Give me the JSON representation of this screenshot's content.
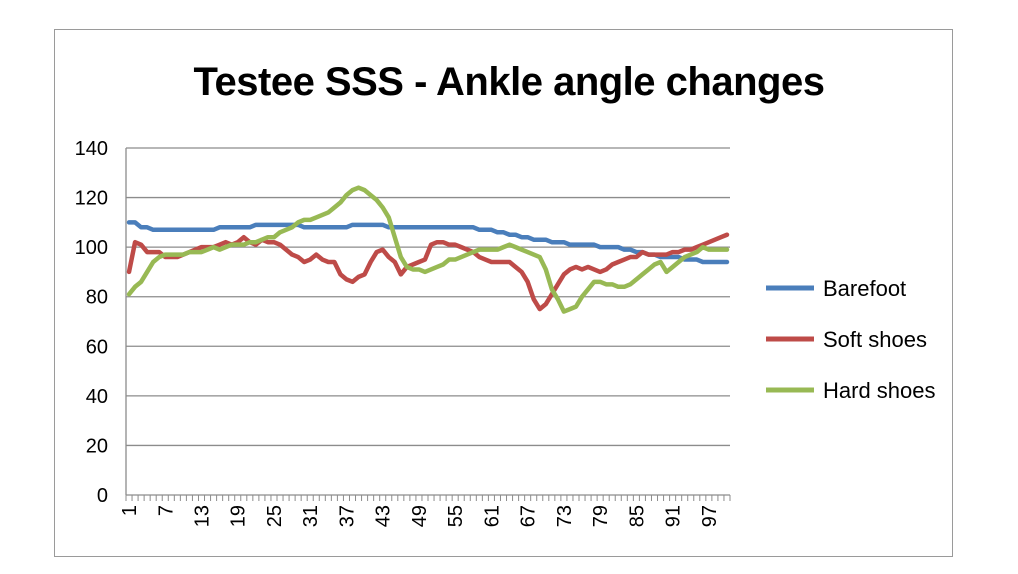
{
  "chart_data": {
    "type": "line",
    "title": "Testee  SSS - Ankle angle changes",
    "xlabel": "",
    "ylabel": "",
    "ylim": [
      0,
      140
    ],
    "yticks": [
      0,
      20,
      40,
      60,
      80,
      100,
      120,
      140
    ],
    "x_count": 100,
    "x_tick_labels": [
      "1",
      "7",
      "13",
      "19",
      "25",
      "31",
      "37",
      "43",
      "49",
      "55",
      "61",
      "67",
      "73",
      "79",
      "85",
      "91",
      "97"
    ],
    "grid": "horizontal",
    "legend_position": "right",
    "series": [
      {
        "name": "Barefoot",
        "color": "#4a7ebb",
        "values": [
          110,
          110,
          108,
          108,
          107,
          107,
          107,
          107,
          107,
          107,
          107,
          107,
          107,
          107,
          107,
          108,
          108,
          108,
          108,
          108,
          108,
          109,
          109,
          109,
          109,
          109,
          109,
          109,
          109,
          108,
          108,
          108,
          108,
          108,
          108,
          108,
          108,
          109,
          109,
          109,
          109,
          109,
          109,
          108,
          108,
          108,
          108,
          108,
          108,
          108,
          108,
          108,
          108,
          108,
          108,
          108,
          108,
          108,
          107,
          107,
          107,
          106,
          106,
          105,
          105,
          104,
          104,
          103,
          103,
          103,
          102,
          102,
          102,
          101,
          101,
          101,
          101,
          101,
          100,
          100,
          100,
          100,
          99,
          99,
          98,
          98,
          97,
          97,
          96,
          96,
          96,
          96,
          95,
          95,
          95,
          94,
          94,
          94,
          94,
          94
        ]
      },
      {
        "name": "Soft shoes",
        "color": "#be4b48",
        "values": [
          90,
          102,
          101,
          98,
          98,
          98,
          96,
          96,
          96,
          97,
          98,
          99,
          100,
          100,
          100,
          101,
          102,
          101,
          102,
          104,
          102,
          101,
          103,
          102,
          102,
          101,
          99,
          97,
          96,
          94,
          95,
          97,
          95,
          94,
          94,
          89,
          87,
          86,
          88,
          89,
          94,
          98,
          99,
          96,
          94,
          89,
          92,
          93,
          94,
          95,
          101,
          102,
          102,
          101,
          101,
          100,
          99,
          98,
          96,
          95,
          94,
          94,
          94,
          94,
          92,
          90,
          86,
          79,
          75,
          77,
          81,
          85,
          89,
          91,
          92,
          91,
          92,
          91,
          90,
          91,
          93,
          94,
          95,
          96,
          96,
          98,
          97,
          97,
          97,
          97,
          98,
          98,
          99,
          99,
          100,
          101,
          102,
          103,
          104,
          105
        ]
      },
      {
        "name": "Hard shoes",
        "color": "#98b954",
        "values": [
          81,
          84,
          86,
          90,
          94,
          96,
          97,
          97,
          97,
          97,
          98,
          98,
          98,
          99,
          100,
          99,
          100,
          101,
          101,
          101,
          102,
          102,
          103,
          104,
          104,
          106,
          107,
          108,
          110,
          111,
          111,
          112,
          113,
          114,
          116,
          118,
          121,
          123,
          124,
          123,
          121,
          119,
          116,
          112,
          104,
          96,
          92,
          91,
          91,
          90,
          91,
          92,
          93,
          95,
          95,
          96,
          97,
          98,
          99,
          99,
          99,
          99,
          100,
          101,
          100,
          99,
          98,
          97,
          96,
          91,
          83,
          79,
          74,
          75,
          76,
          80,
          83,
          86,
          86,
          85,
          85,
          84,
          84,
          85,
          87,
          89,
          91,
          93,
          94,
          90,
          92,
          94,
          96,
          97,
          98,
          100,
          99,
          99,
          99,
          99
        ]
      }
    ]
  }
}
